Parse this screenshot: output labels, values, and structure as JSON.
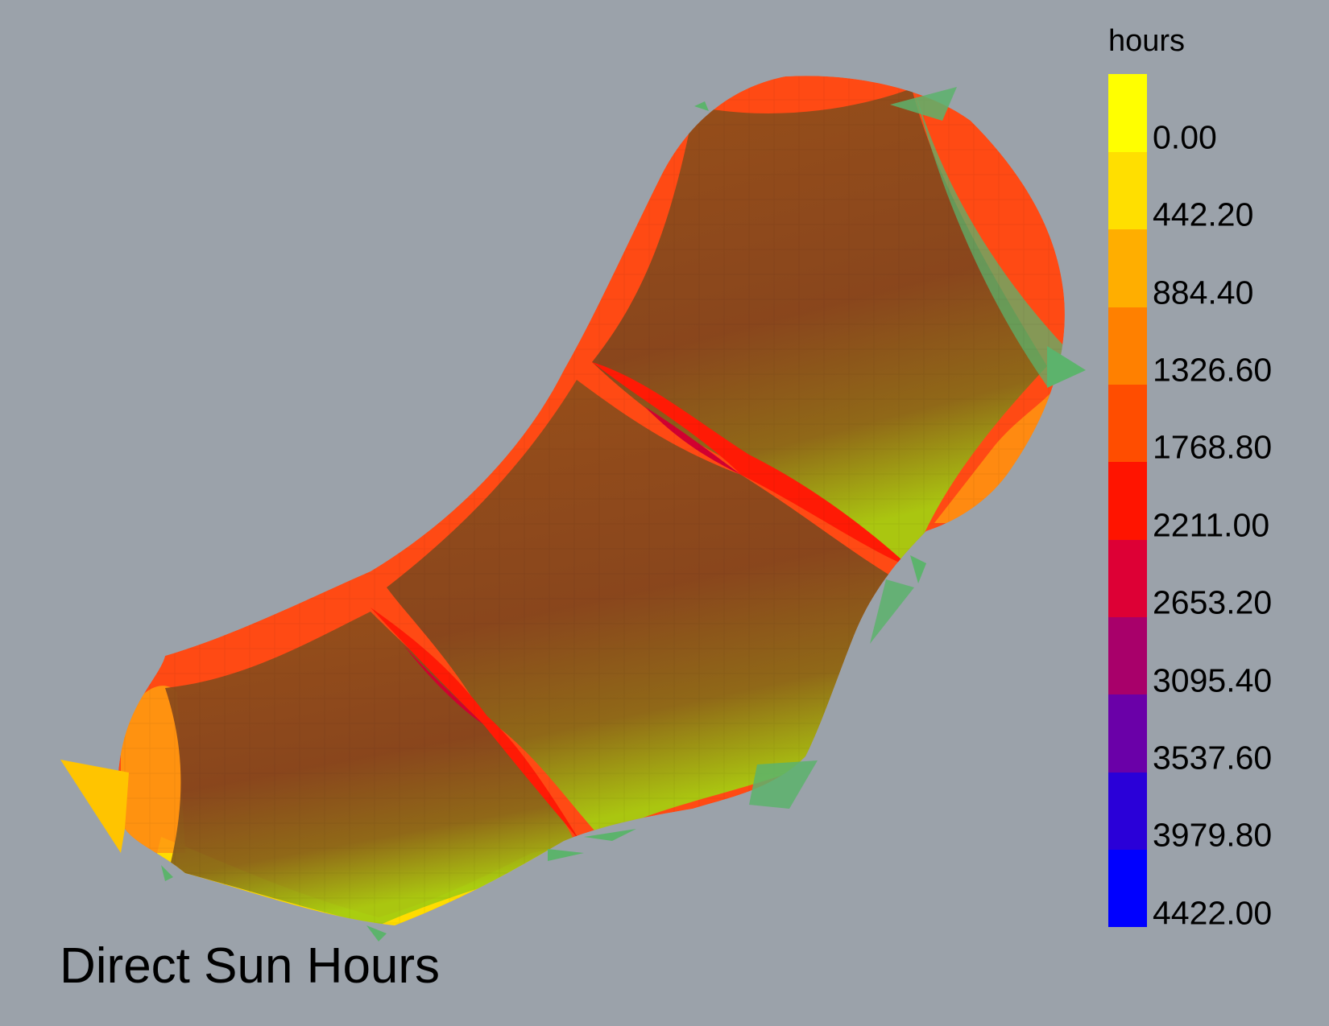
{
  "chart_data": {
    "type": "heatmap",
    "title": "Direct Sun Hours",
    "legend": {
      "title": "hours",
      "placement": "right",
      "min": 0.0,
      "max": 4422.0,
      "ticks": [
        "4422.00",
        "3979.80",
        "3537.60",
        "3095.40",
        "2653.20",
        "2211.00",
        "1768.80",
        "1326.60",
        "884.40",
        "442.20",
        "0.00"
      ],
      "tick_values": [
        4422.0,
        3979.8,
        3537.6,
        3095.4,
        2653.2,
        2211.0,
        1768.8,
        1326.6,
        884.4,
        442.2,
        0.0
      ],
      "bands": [
        "#0000ff",
        "#2a00d8",
        "#6a00a8",
        "#a8006a",
        "#dd0035",
        "#ff1400",
        "#ff4d00",
        "#ff8000",
        "#ffae00",
        "#ffdf00",
        "#ffff00"
      ]
    }
  },
  "colors": {
    "background": "#9ba2aa",
    "edge_red": "#fe2a0a",
    "edge_orange": "#ff6a10",
    "edge_yellow": "#ffd000",
    "core_brown": "#864a1c",
    "core_green": "#9ad012",
    "overlay_green": "#5cb36c"
  }
}
